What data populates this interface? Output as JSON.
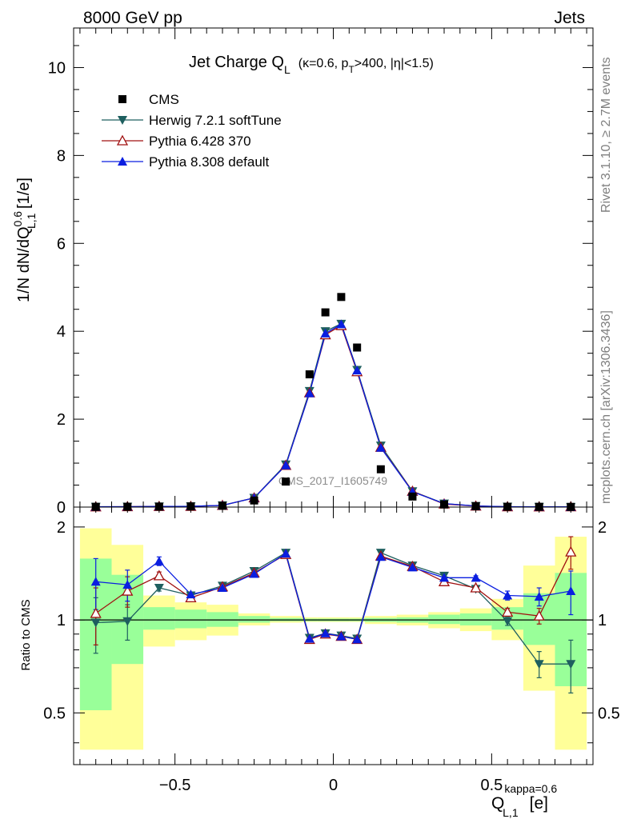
{
  "header": {
    "left": "8000 GeV pp",
    "right": "Jets"
  },
  "side": {
    "rivet": "Rivet 3.1.10, ≥ 2.7M events",
    "mcplots": "mcplots.cern.ch [arXiv:1306.3436]"
  },
  "title": {
    "main": "Jet Charge Q",
    "main_sub": "L",
    "params_1": "(κ=0.6, p",
    "params_sub": "T",
    "params_2": ">400, |η|<1.5)"
  },
  "ylabel": {
    "p1": "1/N dN/dQ",
    "sup": "0.6",
    "sub": "L,1",
    "p2": " [1/e]"
  },
  "ratio_ylabel": "Ratio to CMS",
  "xlabel": {
    "base": "Q",
    "sup": "kappa=0.6",
    "sub": "L,1",
    "unit": "[e]"
  },
  "watermark": "CMS_2017_I1605749",
  "colors": {
    "cms": "#000000",
    "herwig": "#1e5f5f",
    "p6": "#a01010",
    "p8": "#0a1ee0",
    "band_yellow": "#ffff99",
    "band_green": "#99ff99"
  },
  "chart_data": {
    "type": "scatter",
    "x": [
      -0.75,
      -0.65,
      -0.55,
      -0.45,
      -0.35,
      -0.25,
      -0.15,
      -0.075,
      -0.025,
      0.025,
      0.075,
      0.15,
      0.25,
      0.35,
      0.45,
      0.55,
      0.65,
      0.75
    ],
    "x_edges": [
      -0.8,
      -0.7,
      -0.6,
      -0.5,
      -0.4,
      -0.3,
      -0.2,
      -0.1,
      -0.05,
      0,
      0.05,
      0.1,
      0.2,
      0.3,
      0.4,
      0.5,
      0.6,
      0.7,
      0.8
    ],
    "xlim": [
      -0.82,
      0.82
    ],
    "ylim": [
      0,
      10.9
    ],
    "xticks": [
      "−0.5",
      "0",
      "0.5"
    ],
    "xtick_values": [
      -0.5,
      0,
      0.5
    ],
    "yticks": [
      "0",
      "2",
      "4",
      "6",
      "8",
      "10"
    ],
    "ytick_values": [
      0,
      2,
      4,
      6,
      8,
      10
    ],
    "series": [
      {
        "name": "CMS",
        "marker": "square",
        "values": [
          0.006,
          0.008,
          0.01,
          0.015,
          0.03,
          0.15,
          0.58,
          3.02,
          4.43,
          4.78,
          3.63,
          0.86,
          0.24,
          0.06,
          0.02,
          0.008,
          0.006,
          0.004
        ]
      },
      {
        "name": "Herwig 7.2.1 softTune",
        "marker": "triangle-down",
        "values": [
          0.006,
          0.008,
          0.013,
          0.018,
          0.038,
          0.21,
          0.97,
          2.64,
          4.0,
          4.17,
          3.12,
          1.4,
          0.36,
          0.08,
          0.025,
          0.008,
          0.004,
          0.003
        ]
      },
      {
        "name": "Pythia 6.428 370",
        "marker": "triangle-open",
        "values": [
          0.006,
          0.009,
          0.014,
          0.017,
          0.038,
          0.21,
          0.95,
          2.6,
          3.92,
          4.13,
          3.08,
          1.36,
          0.36,
          0.07,
          0.023,
          0.008,
          0.006,
          0.007
        ]
      },
      {
        "name": "Pythia 8.308 default",
        "marker": "triangle-up",
        "values": [
          0.007,
          0.009,
          0.015,
          0.018,
          0.038,
          0.21,
          0.95,
          2.59,
          3.95,
          4.16,
          3.11,
          1.35,
          0.35,
          0.08,
          0.026,
          0.01,
          0.007,
          0.005
        ]
      }
    ],
    "ratio": {
      "ylim": [
        0.34,
        2.32
      ],
      "log": true,
      "yticks": [
        "0.5",
        "1",
        "2"
      ],
      "ytick_values": [
        0.5,
        1,
        2
      ],
      "band_yellow": [
        [
          0.38,
          1.98
        ],
        [
          0.38,
          1.75
        ],
        [
          0.82,
          1.2
        ],
        [
          0.86,
          1.14
        ],
        [
          0.89,
          1.12
        ],
        [
          0.96,
          1.05
        ],
        [
          0.98,
          1.03
        ],
        [
          0.985,
          1.02
        ],
        [
          0.985,
          1.02
        ],
        [
          0.985,
          1.02
        ],
        [
          0.985,
          1.02
        ],
        [
          0.97,
          1.03
        ],
        [
          0.96,
          1.04
        ],
        [
          0.94,
          1.06
        ],
        [
          0.92,
          1.09
        ],
        [
          0.86,
          1.17
        ],
        [
          0.59,
          1.5
        ],
        [
          0.38,
          1.86
        ]
      ],
      "band_green": [
        [
          0.51,
          1.58
        ],
        [
          0.72,
          1.4
        ],
        [
          0.93,
          1.1
        ],
        [
          0.94,
          1.08
        ],
        [
          0.95,
          1.06
        ],
        [
          0.98,
          1.03
        ],
        [
          0.99,
          1.015
        ],
        [
          0.99,
          1.01
        ],
        [
          0.99,
          1.01
        ],
        [
          0.99,
          1.01
        ],
        [
          0.99,
          1.01
        ],
        [
          0.985,
          1.015
        ],
        [
          0.98,
          1.02
        ],
        [
          0.97,
          1.04
        ],
        [
          0.96,
          1.05
        ],
        [
          0.93,
          1.1
        ],
        [
          0.83,
          1.22
        ],
        [
          0.61,
          1.42
        ]
      ],
      "series": [
        {
          "name": "Herwig 7.2.1 softTune",
          "values": [
            0.98,
            0.99,
            1.27,
            1.2,
            1.29,
            1.44,
            1.65,
            0.875,
            0.905,
            0.89,
            0.87,
            1.65,
            1.5,
            1.39,
            1.26,
            0.99,
            0.72,
            0.72
          ],
          "err": [
            0.2,
            0.13,
            0.03,
            0.02,
            0.01,
            0.01,
            0.01,
            0.005,
            0.005,
            0.005,
            0.005,
            0.01,
            0.01,
            0.01,
            0.02,
            0.03,
            0.07,
            0.14
          ]
        },
        {
          "name": "Pythia 6.428 370",
          "values": [
            1.05,
            1.24,
            1.39,
            1.18,
            1.28,
            1.42,
            1.63,
            0.865,
            0.9,
            0.885,
            0.865,
            1.61,
            1.49,
            1.33,
            1.27,
            1.06,
            1.03,
            1.66
          ],
          "err": [
            0.22,
            0.14,
            0.04,
            0.02,
            0.01,
            0.01,
            0.01,
            0.005,
            0.005,
            0.005,
            0.005,
            0.01,
            0.01,
            0.01,
            0.02,
            0.03,
            0.06,
            0.2
          ]
        },
        {
          "name": "Pythia 8.308 default",
          "values": [
            1.33,
            1.3,
            1.55,
            1.21,
            1.27,
            1.41,
            1.64,
            0.87,
            0.905,
            0.885,
            0.865,
            1.6,
            1.48,
            1.37,
            1.37,
            1.2,
            1.19,
            1.24
          ],
          "err": [
            0.25,
            0.15,
            0.05,
            0.02,
            0.01,
            0.01,
            0.01,
            0.005,
            0.005,
            0.005,
            0.005,
            0.01,
            0.01,
            0.01,
            0.02,
            0.04,
            0.08,
            0.2
          ]
        }
      ]
    }
  }
}
